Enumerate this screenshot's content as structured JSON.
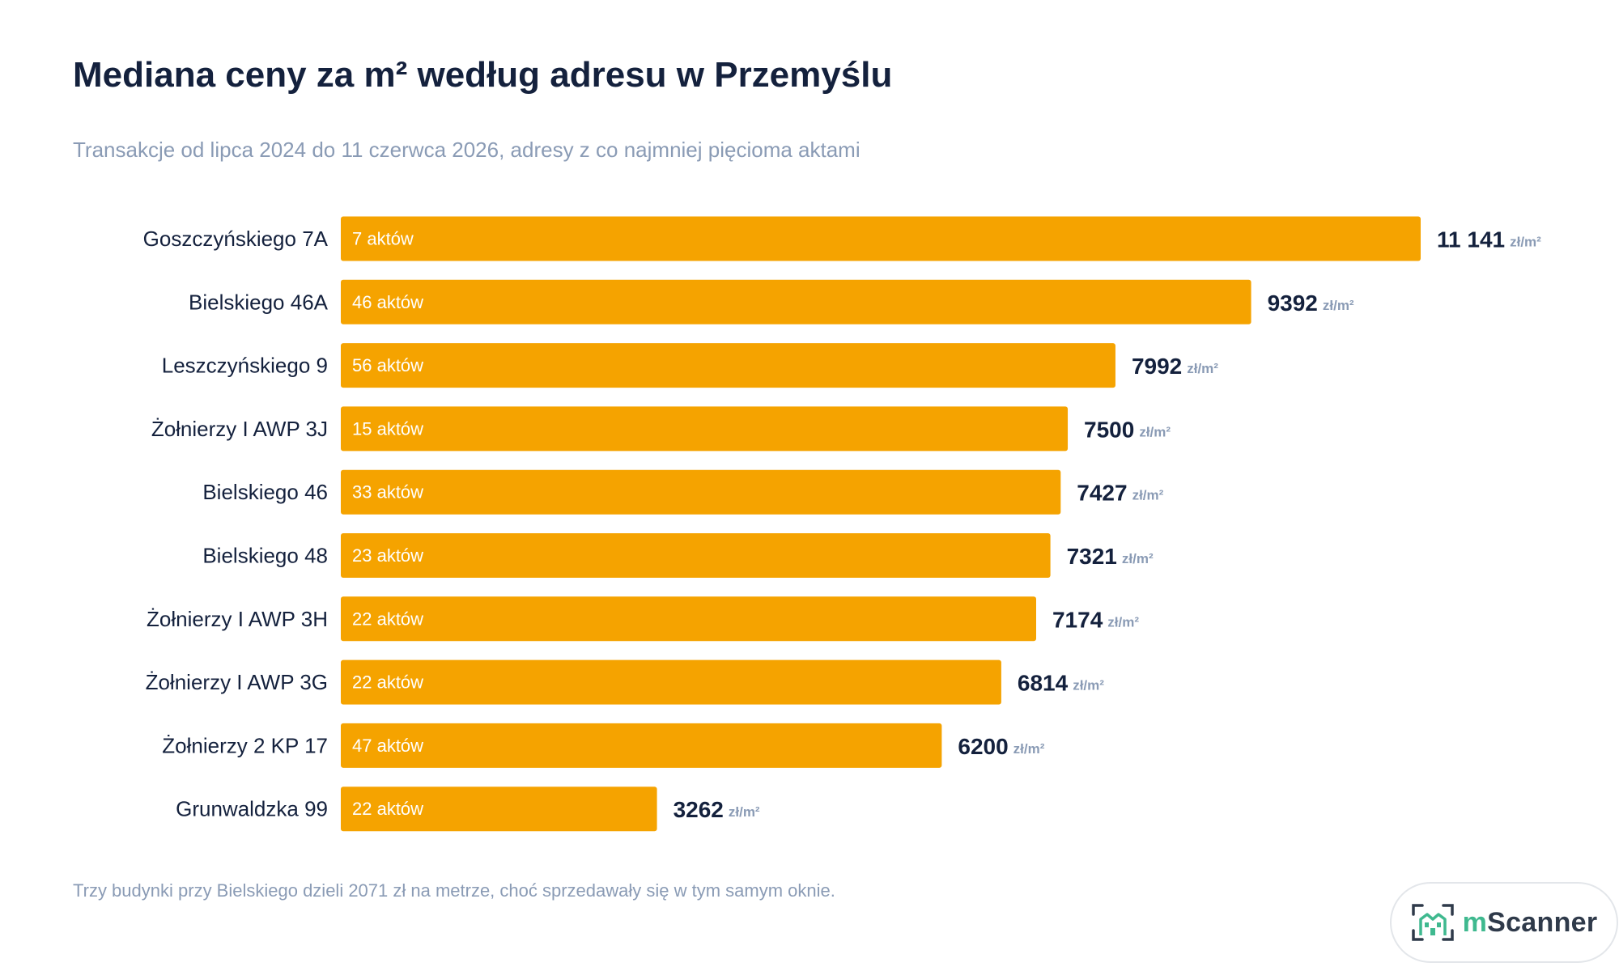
{
  "header": {
    "title": "Mediana ceny za m² według adresu w Przemyślu",
    "subtitle": "Transakcje od lipca 2024 do 11 czerwca 2026, adresy z co najmniej pięcioma aktami"
  },
  "footer": {
    "note": "Trzy budynki przy Bielskiego dzieli 2071 zł na metrze, choć sprzedawały się w tym samym oknie.",
    "logo": {
      "icon": "building-scan-icon",
      "prefix": "m",
      "name": "Scanner"
    }
  },
  "colors": {
    "bar": "#F5A300",
    "bar_label": "#ffffff",
    "category": "#14213d",
    "value": "#14213d",
    "unit": "#8a9bb5",
    "logo_accent": "#3fb98f"
  },
  "chart_data": {
    "type": "bar",
    "orientation": "horizontal",
    "title": "Mediana ceny za m² według adresu w Przemyślu",
    "subtitle": "Transakcje od lipca 2024 do 11 czerwca 2026, adresy z co najmniej pięcioma aktami",
    "unit": "zł/m²",
    "categories": [
      "Goszczyńskiego 7A",
      "Bielskiego 46A",
      "Leszczyńskiego 9",
      "Żołnierzy I AWP 3J",
      "Bielskiego 46",
      "Bielskiego 48",
      "Żołnierzy I AWP 3H",
      "Żołnierzy I AWP 3G",
      "Żołnierzy 2 KP 17",
      "Grunwaldzka 99"
    ],
    "values": [
      11141,
      9392,
      7992,
      7500,
      7427,
      7321,
      7174,
      6814,
      6200,
      3262
    ],
    "value_labels": [
      "11 141",
      "9392",
      "7992",
      "7500",
      "7427",
      "7321",
      "7174",
      "6814",
      "6200",
      "3262"
    ],
    "bar_labels": [
      "7 aktów",
      "46 aktów",
      "56 aktów",
      "15 aktów",
      "33 aktów",
      "23 aktów",
      "22 aktów",
      "22 aktów",
      "47 aktów",
      "22 aktów"
    ],
    "xlim": [
      0,
      11141
    ],
    "grid": false,
    "legend": "none"
  }
}
